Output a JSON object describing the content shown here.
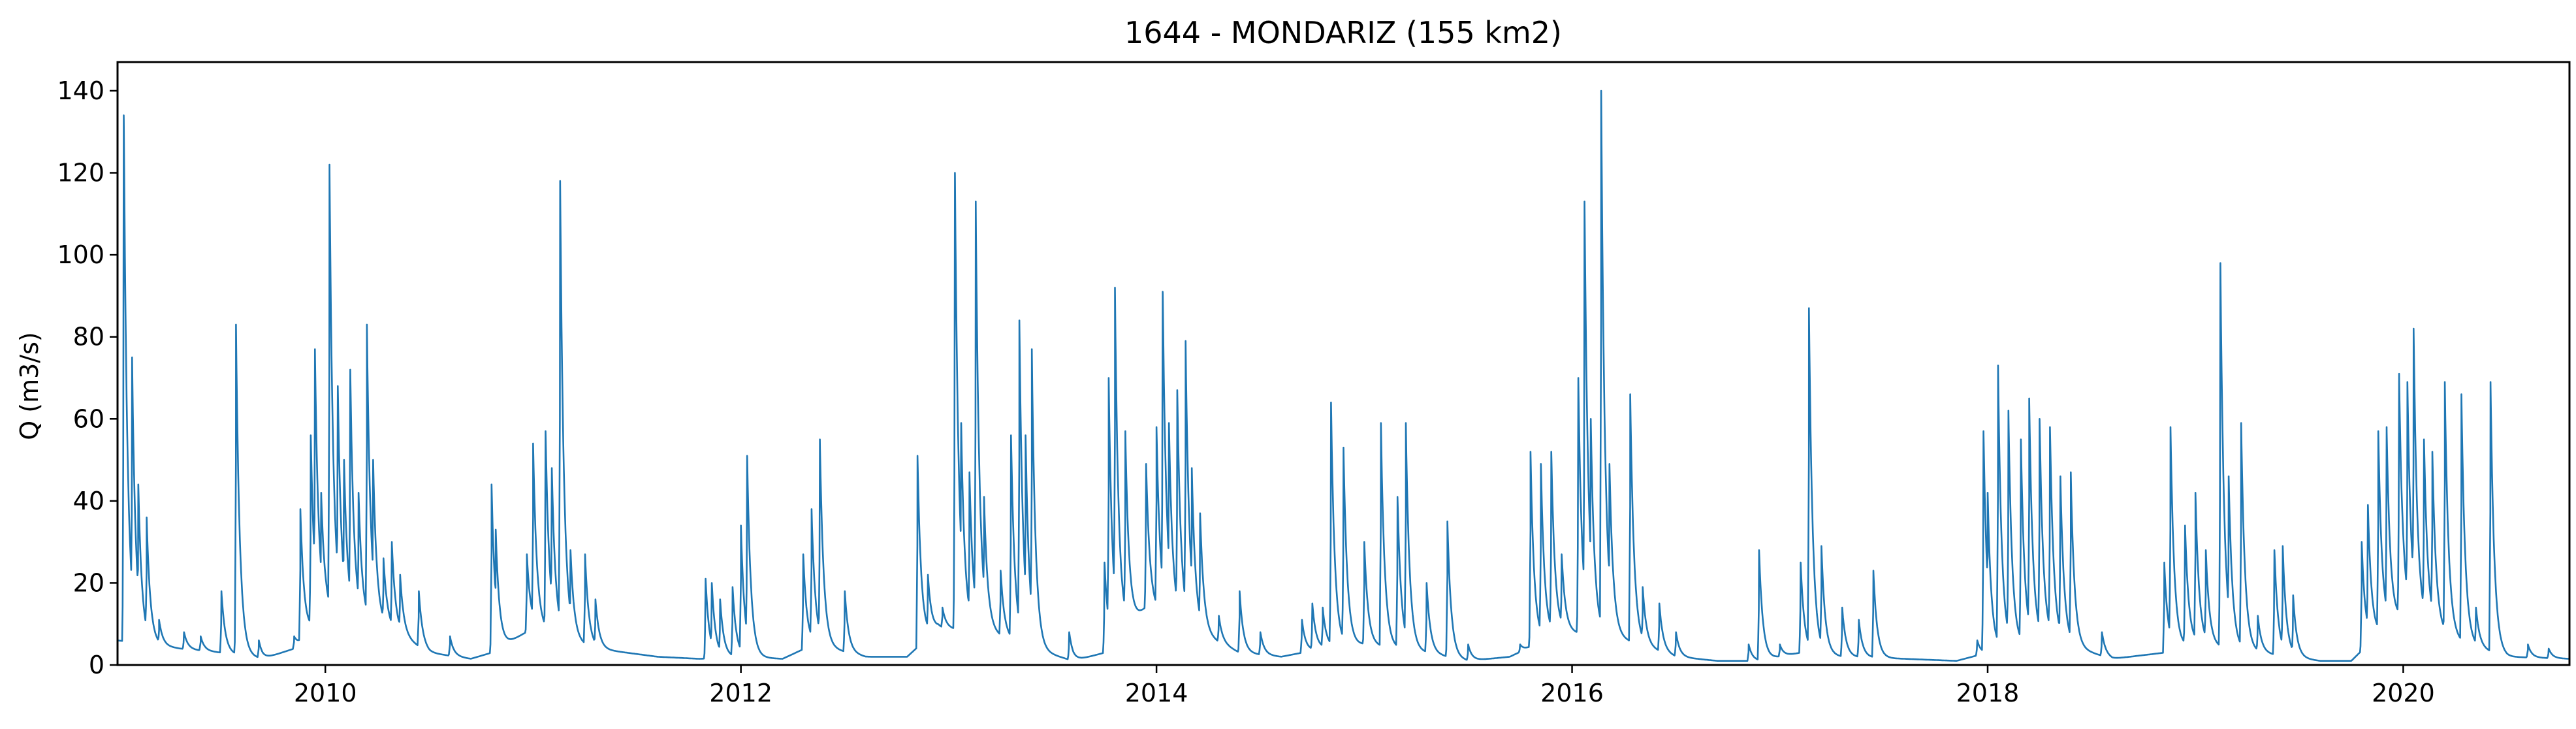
{
  "chart_data": {
    "type": "line",
    "title": "1644 - MONDARIZ (155 km2)",
    "xlabel": "",
    "ylabel": "Q (m3/s)",
    "xlim": [
      2009.0,
      2020.8
    ],
    "ylim": [
      0,
      147
    ],
    "x_ticks": [
      2010,
      2012,
      2014,
      2016,
      2018,
      2020
    ],
    "x_tick_labels": [
      "2010",
      "2012",
      "2014",
      "2016",
      "2018",
      "2020"
    ],
    "y_ticks": [
      0,
      20,
      40,
      60,
      80,
      100,
      120,
      140
    ],
    "y_tick_labels": [
      "0",
      "20",
      "40",
      "60",
      "80",
      "100",
      "120",
      "140"
    ],
    "grid": false,
    "series": [
      {
        "name": "Q",
        "color": "#1f77b4",
        "baseflow": [
          [
            2009.0,
            6
          ],
          [
            2009.3,
            4
          ],
          [
            2009.5,
            3
          ],
          [
            2009.7,
            1.5
          ],
          [
            2009.85,
            4
          ],
          [
            2010.0,
            12
          ],
          [
            2010.3,
            9
          ],
          [
            2010.5,
            3
          ],
          [
            2010.7,
            1.5
          ],
          [
            2010.8,
            3
          ],
          [
            2011.0,
            9
          ],
          [
            2011.3,
            4
          ],
          [
            2011.6,
            2
          ],
          [
            2011.8,
            1.5
          ],
          [
            2012.0,
            2
          ],
          [
            2012.2,
            1.5
          ],
          [
            2012.35,
            5
          ],
          [
            2012.6,
            2
          ],
          [
            2012.8,
            2
          ],
          [
            2012.95,
            9
          ],
          [
            2013.2,
            8
          ],
          [
            2013.4,
            4
          ],
          [
            2013.6,
            1
          ],
          [
            2013.75,
            3
          ],
          [
            2013.95,
            14
          ],
          [
            2014.2,
            8
          ],
          [
            2014.4,
            3
          ],
          [
            2014.6,
            2
          ],
          [
            2014.8,
            4
          ],
          [
            2015.0,
            5
          ],
          [
            2015.3,
            3
          ],
          [
            2015.5,
            1
          ],
          [
            2015.7,
            2
          ],
          [
            2015.95,
            8
          ],
          [
            2016.2,
            7
          ],
          [
            2016.5,
            2
          ],
          [
            2016.7,
            1
          ],
          [
            2016.9,
            1
          ],
          [
            2017.1,
            3
          ],
          [
            2017.3,
            2
          ],
          [
            2017.6,
            1.5
          ],
          [
            2017.85,
            1
          ],
          [
            2018.0,
            3
          ],
          [
            2018.3,
            6
          ],
          [
            2018.6,
            1.5
          ],
          [
            2018.85,
            3
          ],
          [
            2019.0,
            5
          ],
          [
            2019.3,
            3
          ],
          [
            2019.6,
            1
          ],
          [
            2019.75,
            1
          ],
          [
            2019.85,
            6
          ],
          [
            2020.0,
            12
          ],
          [
            2020.3,
            5
          ],
          [
            2020.5,
            2
          ],
          [
            2020.8,
            1.5
          ]
        ],
        "peaks": [
          [
            2009.03,
            134
          ],
          [
            2009.07,
            75
          ],
          [
            2009.1,
            44
          ],
          [
            2009.14,
            36
          ],
          [
            2009.2,
            11
          ],
          [
            2009.32,
            8
          ],
          [
            2009.4,
            7
          ],
          [
            2009.5,
            18
          ],
          [
            2009.57,
            83
          ],
          [
            2009.68,
            6
          ],
          [
            2009.85,
            7
          ],
          [
            2009.88,
            38
          ],
          [
            2009.93,
            56
          ],
          [
            2009.95,
            77
          ],
          [
            2009.98,
            42
          ],
          [
            2010.02,
            122
          ],
          [
            2010.06,
            68
          ],
          [
            2010.09,
            50
          ],
          [
            2010.12,
            72
          ],
          [
            2010.16,
            42
          ],
          [
            2010.2,
            83
          ],
          [
            2010.23,
            50
          ],
          [
            2010.28,
            26
          ],
          [
            2010.32,
            30
          ],
          [
            2010.36,
            22
          ],
          [
            2010.45,
            18
          ],
          [
            2010.6,
            7
          ],
          [
            2010.8,
            44
          ],
          [
            2010.82,
            33
          ],
          [
            2010.97,
            27
          ],
          [
            2011.0,
            54
          ],
          [
            2011.06,
            57
          ],
          [
            2011.09,
            48
          ],
          [
            2011.13,
            118
          ],
          [
            2011.18,
            28
          ],
          [
            2011.25,
            27
          ],
          [
            2011.3,
            16
          ],
          [
            2011.83,
            21
          ],
          [
            2011.86,
            20
          ],
          [
            2011.9,
            16
          ],
          [
            2011.96,
            19
          ],
          [
            2012.0,
            34
          ],
          [
            2012.03,
            51
          ],
          [
            2012.3,
            27
          ],
          [
            2012.34,
            38
          ],
          [
            2012.38,
            55
          ],
          [
            2012.5,
            18
          ],
          [
            2012.85,
            51
          ],
          [
            2012.9,
            22
          ],
          [
            2012.97,
            14
          ],
          [
            2013.03,
            120
          ],
          [
            2013.06,
            59
          ],
          [
            2013.1,
            47
          ],
          [
            2013.13,
            113
          ],
          [
            2013.17,
            41
          ],
          [
            2013.25,
            23
          ],
          [
            2013.3,
            56
          ],
          [
            2013.34,
            84
          ],
          [
            2013.37,
            56
          ],
          [
            2013.4,
            77
          ],
          [
            2013.58,
            8
          ],
          [
            2013.75,
            25
          ],
          [
            2013.77,
            70
          ],
          [
            2013.8,
            92
          ],
          [
            2013.85,
            57
          ],
          [
            2013.95,
            49
          ],
          [
            2014.0,
            58
          ],
          [
            2014.03,
            91
          ],
          [
            2014.06,
            59
          ],
          [
            2014.1,
            67
          ],
          [
            2014.14,
            79
          ],
          [
            2014.17,
            48
          ],
          [
            2014.21,
            37
          ],
          [
            2014.3,
            12
          ],
          [
            2014.4,
            18
          ],
          [
            2014.5,
            8
          ],
          [
            2014.7,
            11
          ],
          [
            2014.75,
            15
          ],
          [
            2014.8,
            14
          ],
          [
            2014.84,
            64
          ],
          [
            2014.9,
            53
          ],
          [
            2015.0,
            30
          ],
          [
            2015.08,
            59
          ],
          [
            2015.16,
            41
          ],
          [
            2015.2,
            59
          ],
          [
            2015.3,
            20
          ],
          [
            2015.4,
            35
          ],
          [
            2015.5,
            5
          ],
          [
            2015.75,
            5
          ],
          [
            2015.8,
            52
          ],
          [
            2015.85,
            49
          ],
          [
            2015.9,
            52
          ],
          [
            2015.95,
            27
          ],
          [
            2016.03,
            70
          ],
          [
            2016.06,
            113
          ],
          [
            2016.09,
            60
          ],
          [
            2016.14,
            140
          ],
          [
            2016.18,
            49
          ],
          [
            2016.28,
            66
          ],
          [
            2016.34,
            19
          ],
          [
            2016.42,
            15
          ],
          [
            2016.5,
            8
          ],
          [
            2016.85,
            5
          ],
          [
            2016.9,
            28
          ],
          [
            2017.0,
            5
          ],
          [
            2017.1,
            25
          ],
          [
            2017.14,
            87
          ],
          [
            2017.2,
            29
          ],
          [
            2017.3,
            14
          ],
          [
            2017.38,
            11
          ],
          [
            2017.45,
            23
          ],
          [
            2017.95,
            6
          ],
          [
            2017.98,
            57
          ],
          [
            2018.0,
            42
          ],
          [
            2018.05,
            73
          ],
          [
            2018.1,
            62
          ],
          [
            2018.16,
            55
          ],
          [
            2018.2,
            65
          ],
          [
            2018.25,
            60
          ],
          [
            2018.3,
            58
          ],
          [
            2018.35,
            46
          ],
          [
            2018.4,
            47
          ],
          [
            2018.55,
            8
          ],
          [
            2018.85,
            25
          ],
          [
            2018.88,
            58
          ],
          [
            2018.95,
            34
          ],
          [
            2019.0,
            42
          ],
          [
            2019.05,
            28
          ],
          [
            2019.12,
            98
          ],
          [
            2019.16,
            46
          ],
          [
            2019.22,
            59
          ],
          [
            2019.3,
            12
          ],
          [
            2019.38,
            28
          ],
          [
            2019.42,
            29
          ],
          [
            2019.47,
            17
          ],
          [
            2019.8,
            30
          ],
          [
            2019.83,
            39
          ],
          [
            2019.88,
            57
          ],
          [
            2019.92,
            58
          ],
          [
            2019.98,
            71
          ],
          [
            2020.02,
            69
          ],
          [
            2020.05,
            82
          ],
          [
            2020.1,
            55
          ],
          [
            2020.14,
            52
          ],
          [
            2020.2,
            69
          ],
          [
            2020.28,
            66
          ],
          [
            2020.35,
            14
          ],
          [
            2020.42,
            69
          ],
          [
            2020.6,
            5
          ],
          [
            2020.7,
            4
          ]
        ]
      }
    ]
  }
}
